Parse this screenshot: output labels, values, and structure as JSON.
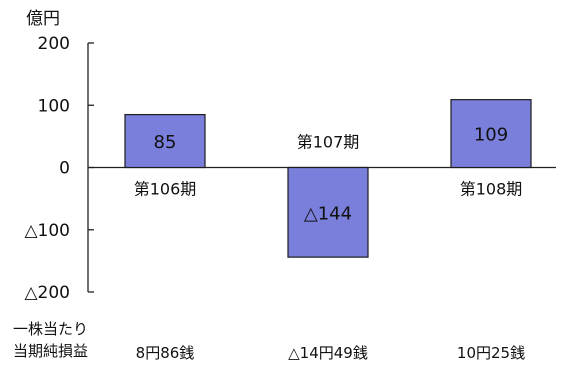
{
  "chart_data": {
    "type": "bar",
    "unit": "億円",
    "categories": [
      "第106期",
      "第107期",
      "第108期"
    ],
    "values": [
      85,
      -144,
      109
    ],
    "value_labels": [
      "85",
      "△144",
      "109"
    ],
    "ylim": [
      -200,
      200
    ],
    "yticks": [
      200,
      100,
      0,
      -100,
      -200
    ],
    "ytick_labels": [
      "200",
      "100",
      "0",
      "△100",
      "△200"
    ],
    "bar_color": "#7a7fdc",
    "bar_border": "#1c1c1c",
    "grid": false
  },
  "eps": {
    "label_line1": "一株当たり",
    "label_line2": "当期純損益",
    "values": [
      "8円86銭",
      "△14円49銭",
      "10円25銭"
    ]
  }
}
